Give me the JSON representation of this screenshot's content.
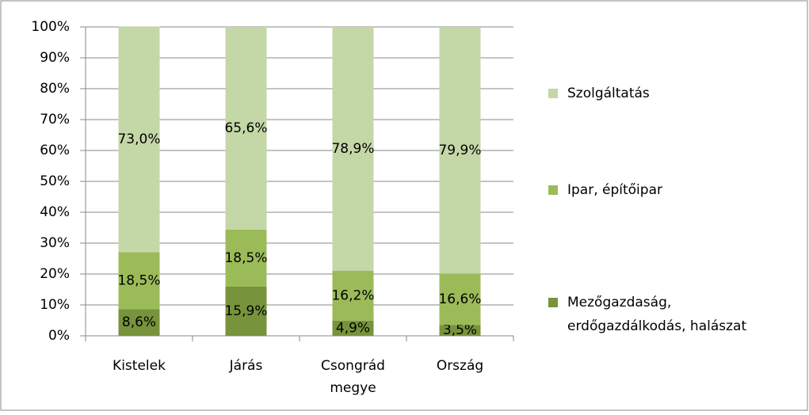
{
  "chart_data": {
    "type": "stacked_bar",
    "categories": [
      "Kistelek",
      "Járás",
      "Csongrád megye",
      "Ország"
    ],
    "series": [
      {
        "name": "Mezőgazdaság, erdőgazdálkodás, halászat",
        "color": "#77933c",
        "values": [
          8.6,
          15.9,
          4.9,
          3.5
        ],
        "value_labels": [
          "8,6%",
          "15,9%",
          "4,9%",
          "3,5%"
        ]
      },
      {
        "name": "Ipar, építőipar",
        "color": "#9bbb59",
        "values": [
          18.5,
          18.5,
          16.2,
          16.6
        ],
        "value_labels": [
          "18,5%",
          "18,5%",
          "16,2%",
          "16,6%"
        ]
      },
      {
        "name": "Szolgáltatás",
        "color": "#c4d7a6",
        "values": [
          73.0,
          65.6,
          78.9,
          79.9
        ],
        "value_labels": [
          "73,0%",
          "65,6%",
          "78,9%",
          "79,9%"
        ]
      }
    ],
    "ylim": [
      0,
      100
    ],
    "yticks": [
      {
        "value": 0,
        "label": "0%"
      },
      {
        "value": 10,
        "label": "10%"
      },
      {
        "value": 20,
        "label": "20%"
      },
      {
        "value": 30,
        "label": "30%"
      },
      {
        "value": 40,
        "label": "40%"
      },
      {
        "value": 50,
        "label": "50%"
      },
      {
        "value": 60,
        "label": "60%"
      },
      {
        "value": 70,
        "label": "70%"
      },
      {
        "value": 80,
        "label": "80%"
      },
      {
        "value": 90,
        "label": "90%"
      },
      {
        "value": 100,
        "label": "100%"
      }
    ],
    "grid": true,
    "legend": "right"
  }
}
